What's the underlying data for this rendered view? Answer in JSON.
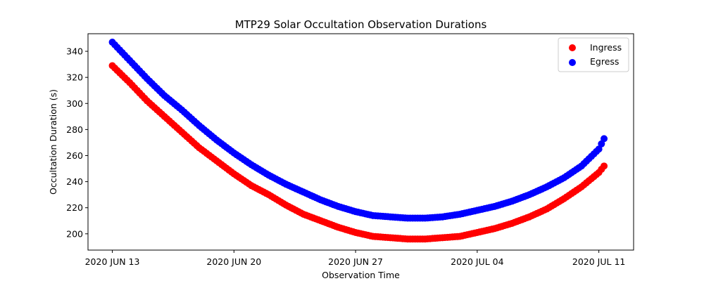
{
  "chart_data": {
    "type": "scatter",
    "title": "MTP29 Solar Occultation Observation Durations",
    "xlabel": "Observation Time",
    "ylabel": "Occultation Duration (s)",
    "x_unit": "days since 2020 JUN 13",
    "xlim": [
      -1.4,
      30.0
    ],
    "ylim": [
      187.5,
      353.5
    ],
    "x_ticks": [
      {
        "value": 0,
        "label": "2020 JUN 13"
      },
      {
        "value": 7,
        "label": "2020 JUN 20"
      },
      {
        "value": 14,
        "label": "2020 JUN 27"
      },
      {
        "value": 21,
        "label": "2020 JUL 04"
      },
      {
        "value": 28,
        "label": "2020 JUL 11"
      }
    ],
    "y_ticks": [
      200,
      220,
      240,
      260,
      280,
      300,
      320,
      340
    ],
    "grid": false,
    "legend_position": "top-right",
    "series": [
      {
        "name": "Ingress",
        "color": "#ff0000",
        "x": [
          0,
          1,
          2,
          3,
          4,
          5,
          6,
          7,
          8,
          9,
          10,
          11,
          12,
          13,
          14,
          15,
          16,
          17,
          18,
          19,
          20,
          21,
          22,
          23,
          24,
          25,
          26,
          27,
          28,
          28.3
        ],
        "y": [
          329,
          316,
          302,
          290,
          278,
          266,
          256,
          246,
          237,
          230,
          222,
          215,
          210,
          205,
          201,
          198,
          197,
          196,
          196,
          197,
          198,
          201,
          204,
          208,
          213,
          219,
          227,
          236,
          247,
          252
        ]
      },
      {
        "name": "Egress",
        "color": "#0000ff",
        "x": [
          0,
          1,
          2,
          3,
          4,
          5,
          6,
          7,
          8,
          9,
          10,
          11,
          12,
          13,
          14,
          15,
          16,
          17,
          18,
          19,
          20,
          21,
          22,
          23,
          24,
          25,
          26,
          27,
          28,
          28.3
        ],
        "y": [
          347,
          333,
          319,
          306,
          295,
          283,
          272,
          262,
          253,
          245,
          238,
          232,
          226,
          221,
          217,
          214,
          213,
          212,
          212,
          213,
          215,
          218,
          221,
          225,
          230,
          236,
          243,
          252,
          265,
          273
        ]
      }
    ]
  }
}
